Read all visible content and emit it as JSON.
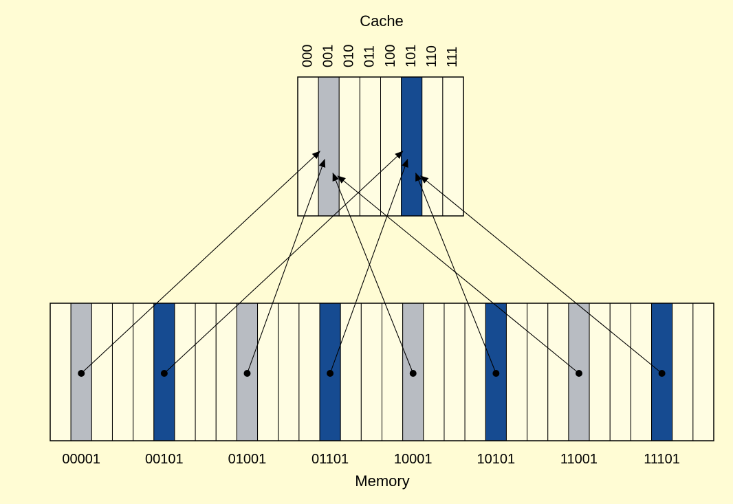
{
  "diagram": {
    "cache_title": "Cache",
    "memory_title": "Memory",
    "cache_index_labels": [
      "000",
      "001",
      "010",
      "011",
      "100",
      "101",
      "110",
      "111"
    ],
    "memory_address_labels": [
      "00001",
      "00101",
      "01001",
      "01101",
      "10001",
      "10101",
      "11001",
      "11101"
    ],
    "colors": {
      "background": "#fffcd4",
      "slot_fill": "#fffde2",
      "slot_border": "#000000",
      "gray_highlight": "#b8bcc2",
      "blue_highlight": "#164b91"
    },
    "cache_highlights": [
      {
        "cache_index": "001",
        "color": "gray"
      },
      {
        "cache_index": "101",
        "color": "blue"
      }
    ],
    "mappings": [
      {
        "memory_address": "00001",
        "cache_index": "001",
        "color": "gray"
      },
      {
        "memory_address": "00101",
        "cache_index": "101",
        "color": "blue"
      },
      {
        "memory_address": "01001",
        "cache_index": "001",
        "color": "gray"
      },
      {
        "memory_address": "01101",
        "cache_index": "101",
        "color": "blue"
      },
      {
        "memory_address": "10001",
        "cache_index": "001",
        "color": "gray"
      },
      {
        "memory_address": "10101",
        "cache_index": "101",
        "color": "blue"
      },
      {
        "memory_address": "11001",
        "cache_index": "001",
        "color": "gray"
      },
      {
        "memory_address": "11101",
        "cache_index": "101",
        "color": "blue"
      }
    ]
  }
}
